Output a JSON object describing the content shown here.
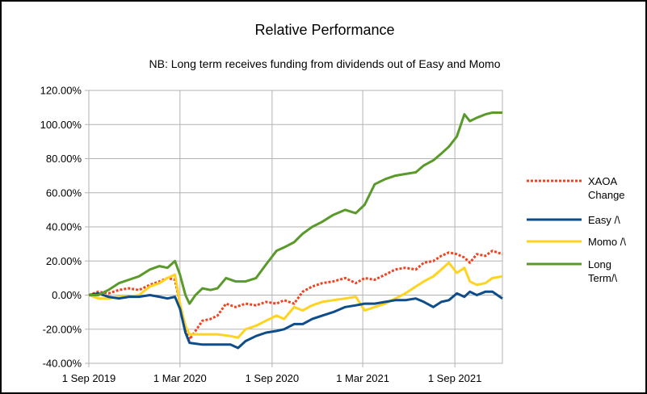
{
  "chart_data": {
    "type": "line",
    "title": "Relative Performance",
    "subtitle": "NB: Long term receives funding from dividends out of Easy and Momo",
    "xlabel": "",
    "ylabel": "",
    "ylim": [
      -0.4,
      1.2
    ],
    "y_ticks": [
      "120.00%",
      "100.00%",
      "80.00%",
      "60.00%",
      "40.00%",
      "20.00%",
      "0.00%",
      "-20.00%",
      "-40.00%"
    ],
    "x_ticks": [
      "1 Sep 2019",
      "1 Mar 2020",
      "1 Sep 2020",
      "1 Mar 2021",
      "1 Sep 2021"
    ],
    "x_tick_dates": [
      "2019-09-01",
      "2020-03-01",
      "2020-09-01",
      "2021-03-01",
      "2021-09-01"
    ],
    "xlim": [
      "2019-09-01",
      "2021-12-05"
    ],
    "grid": true,
    "legend_position": "right",
    "series": [
      {
        "name": "XAOA Change",
        "color": "#ee4422",
        "style": "dotted",
        "points": [
          [
            "2019-09-01",
            0.0
          ],
          [
            "2019-09-20",
            0.02
          ],
          [
            "2019-10-10",
            0.01
          ],
          [
            "2019-10-31",
            0.03
          ],
          [
            "2019-11-20",
            0.04
          ],
          [
            "2019-12-10",
            0.03
          ],
          [
            "2020-01-01",
            0.06
          ],
          [
            "2020-01-20",
            0.08
          ],
          [
            "2020-02-05",
            0.1
          ],
          [
            "2020-02-20",
            0.09
          ],
          [
            "2020-03-01",
            -0.05
          ],
          [
            "2020-03-12",
            -0.2
          ],
          [
            "2020-03-20",
            -0.26
          ],
          [
            "2020-04-01",
            -0.21
          ],
          [
            "2020-04-15",
            -0.15
          ],
          [
            "2020-05-01",
            -0.14
          ],
          [
            "2020-05-15",
            -0.12
          ],
          [
            "2020-06-01",
            -0.05
          ],
          [
            "2020-06-20",
            -0.07
          ],
          [
            "2020-07-10",
            -0.05
          ],
          [
            "2020-07-31",
            -0.06
          ],
          [
            "2020-08-20",
            -0.04
          ],
          [
            "2020-09-10",
            -0.05
          ],
          [
            "2020-09-25",
            -0.03
          ],
          [
            "2020-10-15",
            -0.05
          ],
          [
            "2020-11-01",
            0.02
          ],
          [
            "2020-11-20",
            0.05
          ],
          [
            "2020-12-10",
            0.07
          ],
          [
            "2021-01-01",
            0.08
          ],
          [
            "2021-01-25",
            0.1
          ],
          [
            "2021-02-15",
            0.07
          ],
          [
            "2021-03-05",
            0.1
          ],
          [
            "2021-03-25",
            0.09
          ],
          [
            "2021-04-15",
            0.12
          ],
          [
            "2021-05-05",
            0.15
          ],
          [
            "2021-05-25",
            0.16
          ],
          [
            "2021-06-15",
            0.15
          ],
          [
            "2021-07-01",
            0.19
          ],
          [
            "2021-07-20",
            0.2
          ],
          [
            "2021-08-05",
            0.23
          ],
          [
            "2021-08-20",
            0.25
          ],
          [
            "2021-09-05",
            0.24
          ],
          [
            "2021-09-20",
            0.22
          ],
          [
            "2021-10-01",
            0.19
          ],
          [
            "2021-10-15",
            0.24
          ],
          [
            "2021-11-01",
            0.23
          ],
          [
            "2021-11-15",
            0.26
          ],
          [
            "2021-12-05",
            0.24
          ]
        ]
      },
      {
        "name": "Easy /\\",
        "color": "#0f4c8a",
        "style": "solid",
        "points": [
          [
            "2019-09-01",
            0.0
          ],
          [
            "2019-09-20",
            0.01
          ],
          [
            "2019-10-10",
            -0.01
          ],
          [
            "2019-10-31",
            -0.02
          ],
          [
            "2019-11-20",
            -0.01
          ],
          [
            "2019-12-10",
            -0.01
          ],
          [
            "2020-01-01",
            0.0
          ],
          [
            "2020-01-20",
            -0.01
          ],
          [
            "2020-02-05",
            -0.02
          ],
          [
            "2020-02-20",
            -0.01
          ],
          [
            "2020-03-01",
            -0.08
          ],
          [
            "2020-03-12",
            -0.22
          ],
          [
            "2020-03-20",
            -0.28
          ],
          [
            "2020-04-15",
            -0.29
          ],
          [
            "2020-05-15",
            -0.29
          ],
          [
            "2020-06-10",
            -0.29
          ],
          [
            "2020-06-25",
            -0.31
          ],
          [
            "2020-07-10",
            -0.27
          ],
          [
            "2020-07-31",
            -0.24
          ],
          [
            "2020-08-20",
            -0.22
          ],
          [
            "2020-09-10",
            -0.21
          ],
          [
            "2020-09-25",
            -0.2
          ],
          [
            "2020-10-15",
            -0.17
          ],
          [
            "2020-11-01",
            -0.17
          ],
          [
            "2020-11-20",
            -0.14
          ],
          [
            "2020-12-10",
            -0.12
          ],
          [
            "2021-01-01",
            -0.1
          ],
          [
            "2021-01-25",
            -0.07
          ],
          [
            "2021-02-15",
            -0.06
          ],
          [
            "2021-03-05",
            -0.05
          ],
          [
            "2021-03-25",
            -0.05
          ],
          [
            "2021-04-15",
            -0.04
          ],
          [
            "2021-05-05",
            -0.03
          ],
          [
            "2021-05-25",
            -0.03
          ],
          [
            "2021-06-15",
            -0.02
          ],
          [
            "2021-07-01",
            -0.04
          ],
          [
            "2021-07-20",
            -0.07
          ],
          [
            "2021-08-05",
            -0.04
          ],
          [
            "2021-08-20",
            -0.03
          ],
          [
            "2021-09-05",
            0.01
          ],
          [
            "2021-09-20",
            -0.01
          ],
          [
            "2021-10-01",
            0.02
          ],
          [
            "2021-10-15",
            0.0
          ],
          [
            "2021-11-01",
            0.02
          ],
          [
            "2021-11-15",
            0.02
          ],
          [
            "2021-12-05",
            -0.02
          ]
        ]
      },
      {
        "name": "Momo /\\",
        "color": "#ffd320",
        "style": "solid",
        "points": [
          [
            "2019-09-01",
            0.0
          ],
          [
            "2019-09-20",
            -0.02
          ],
          [
            "2019-10-10",
            -0.02
          ],
          [
            "2019-10-31",
            -0.01
          ],
          [
            "2019-11-20",
            -0.01
          ],
          [
            "2019-12-10",
            0.0
          ],
          [
            "2020-01-01",
            0.05
          ],
          [
            "2020-01-20",
            0.07
          ],
          [
            "2020-02-05",
            0.1
          ],
          [
            "2020-02-20",
            0.12
          ],
          [
            "2020-03-01",
            -0.05
          ],
          [
            "2020-03-12",
            -0.18
          ],
          [
            "2020-03-20",
            -0.23
          ],
          [
            "2020-04-15",
            -0.23
          ],
          [
            "2020-05-15",
            -0.23
          ],
          [
            "2020-06-10",
            -0.24
          ],
          [
            "2020-06-25",
            -0.25
          ],
          [
            "2020-07-10",
            -0.2
          ],
          [
            "2020-07-31",
            -0.18
          ],
          [
            "2020-08-20",
            -0.15
          ],
          [
            "2020-09-10",
            -0.12
          ],
          [
            "2020-09-25",
            -0.14
          ],
          [
            "2020-10-15",
            -0.07
          ],
          [
            "2020-11-01",
            -0.09
          ],
          [
            "2020-11-20",
            -0.06
          ],
          [
            "2020-12-10",
            -0.04
          ],
          [
            "2021-01-01",
            -0.03
          ],
          [
            "2021-01-25",
            -0.02
          ],
          [
            "2021-02-15",
            -0.01
          ],
          [
            "2021-03-05",
            -0.09
          ],
          [
            "2021-03-25",
            -0.07
          ],
          [
            "2021-04-15",
            -0.05
          ],
          [
            "2021-05-05",
            -0.02
          ],
          [
            "2021-05-25",
            0.01
          ],
          [
            "2021-06-15",
            0.05
          ],
          [
            "2021-07-01",
            0.08
          ],
          [
            "2021-07-20",
            0.11
          ],
          [
            "2021-08-05",
            0.15
          ],
          [
            "2021-08-20",
            0.19
          ],
          [
            "2021-09-05",
            0.13
          ],
          [
            "2021-09-20",
            0.16
          ],
          [
            "2021-10-01",
            0.08
          ],
          [
            "2021-10-15",
            0.06
          ],
          [
            "2021-11-01",
            0.07
          ],
          [
            "2021-11-15",
            0.1
          ],
          [
            "2021-12-05",
            0.11
          ]
        ]
      },
      {
        "name": "Long Term/\\",
        "color": "#5a9a2a",
        "style": "solid",
        "points": [
          [
            "2019-09-01",
            0.0
          ],
          [
            "2019-09-20",
            0.0
          ],
          [
            "2019-10-10",
            0.03
          ],
          [
            "2019-10-31",
            0.07
          ],
          [
            "2019-11-20",
            0.09
          ],
          [
            "2019-12-10",
            0.11
          ],
          [
            "2020-01-01",
            0.15
          ],
          [
            "2020-01-20",
            0.17
          ],
          [
            "2020-02-05",
            0.16
          ],
          [
            "2020-02-20",
            0.2
          ],
          [
            "2020-03-01",
            0.12
          ],
          [
            "2020-03-12",
            0.0
          ],
          [
            "2020-03-20",
            -0.05
          ],
          [
            "2020-04-01",
            0.0
          ],
          [
            "2020-04-15",
            0.04
          ],
          [
            "2020-05-01",
            0.03
          ],
          [
            "2020-05-15",
            0.04
          ],
          [
            "2020-06-01",
            0.1
          ],
          [
            "2020-06-20",
            0.08
          ],
          [
            "2020-07-10",
            0.08
          ],
          [
            "2020-07-31",
            0.1
          ],
          [
            "2020-08-20",
            0.18
          ],
          [
            "2020-09-10",
            0.26
          ],
          [
            "2020-09-25",
            0.28
          ],
          [
            "2020-10-15",
            0.31
          ],
          [
            "2020-11-01",
            0.36
          ],
          [
            "2020-11-20",
            0.4
          ],
          [
            "2020-12-10",
            0.43
          ],
          [
            "2021-01-01",
            0.47
          ],
          [
            "2021-01-25",
            0.5
          ],
          [
            "2021-02-15",
            0.48
          ],
          [
            "2021-03-05",
            0.53
          ],
          [
            "2021-03-25",
            0.65
          ],
          [
            "2021-04-15",
            0.68
          ],
          [
            "2021-05-05",
            0.7
          ],
          [
            "2021-05-25",
            0.71
          ],
          [
            "2021-06-15",
            0.72
          ],
          [
            "2021-07-01",
            0.76
          ],
          [
            "2021-07-20",
            0.79
          ],
          [
            "2021-08-05",
            0.83
          ],
          [
            "2021-08-20",
            0.87
          ],
          [
            "2021-09-05",
            0.93
          ],
          [
            "2021-09-20",
            1.06
          ],
          [
            "2021-10-01",
            1.02
          ],
          [
            "2021-10-15",
            1.04
          ],
          [
            "2021-11-01",
            1.06
          ],
          [
            "2021-11-15",
            1.07
          ],
          [
            "2021-12-05",
            1.07
          ]
        ]
      }
    ],
    "legend": [
      {
        "lines": [
          "XAOA",
          "Change"
        ],
        "series": 0
      },
      {
        "lines": [
          "Easy /\\"
        ],
        "series": 1
      },
      {
        "lines": [
          "Momo /\\"
        ],
        "series": 2
      },
      {
        "lines": [
          "Long",
          "Term/\\"
        ],
        "series": 3
      }
    ]
  }
}
